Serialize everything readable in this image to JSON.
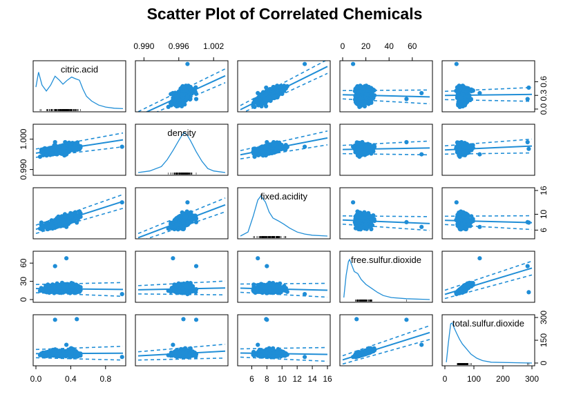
{
  "chart_data": {
    "type": "scatter",
    "title": "Scatter Plot of Correlated Chemicals",
    "point_color": "#1f8dd6",
    "line_color": "#1f8dd6",
    "variables": [
      {
        "name": "citric.acid",
        "range": [
          0,
          1
        ],
        "ticks": [
          "0.0",
          "0.4",
          "0.8"
        ],
        "tick_values": [
          0,
          0.4,
          0.8
        ],
        "density": [
          [
            0,
            0.55
          ],
          [
            0.03,
            0.92
          ],
          [
            0.07,
            0.6
          ],
          [
            0.12,
            0.45
          ],
          [
            0.17,
            0.6
          ],
          [
            0.22,
            0.82
          ],
          [
            0.27,
            0.72
          ],
          [
            0.31,
            0.62
          ],
          [
            0.36,
            0.72
          ],
          [
            0.41,
            0.8
          ],
          [
            0.45,
            0.76
          ],
          [
            0.5,
            0.72
          ],
          [
            0.54,
            0.5
          ],
          [
            0.58,
            0.32
          ],
          [
            0.64,
            0.2
          ],
          [
            0.72,
            0.1
          ],
          [
            0.8,
            0.05
          ],
          [
            0.9,
            0.02
          ],
          [
            1,
            0.01
          ]
        ]
      },
      {
        "name": "density",
        "range": [
          0.989,
          1.004
        ],
        "ticks": [
          "0.990",
          "0.996",
          "1.002"
        ],
        "tick_values": [
          0.99,
          0.996,
          1.002
        ],
        "left_ticks": [
          "0.990",
          "1.000"
        ],
        "left_tick_values": [
          0.99,
          1.0
        ],
        "density": [
          [
            0.989,
            0.0
          ],
          [
            0.991,
            0.04
          ],
          [
            0.993,
            0.15
          ],
          [
            0.994,
            0.32
          ],
          [
            0.995,
            0.55
          ],
          [
            0.996,
            0.8
          ],
          [
            0.9965,
            0.92
          ],
          [
            0.997,
            1.0
          ],
          [
            0.9975,
            0.92
          ],
          [
            0.998,
            0.8
          ],
          [
            0.999,
            0.52
          ],
          [
            1.0,
            0.28
          ],
          [
            1.001,
            0.1
          ],
          [
            1.002,
            0.04
          ],
          [
            1.004,
            0.0
          ]
        ]
      },
      {
        "name": "fixed.acidity",
        "range": [
          4.5,
          16
        ],
        "ticks": [
          "6",
          "8",
          "10",
          "12",
          "14",
          "16"
        ],
        "tick_values": [
          6,
          8,
          10,
          12,
          14,
          16
        ],
        "right_ticks": [
          "6",
          "10",
          "16"
        ],
        "right_tick_values": [
          6,
          10,
          16
        ],
        "density": [
          [
            4.5,
            0.0
          ],
          [
            5.5,
            0.1
          ],
          [
            6.2,
            0.5
          ],
          [
            6.8,
            0.9
          ],
          [
            7.2,
            1.0
          ],
          [
            7.8,
            0.85
          ],
          [
            8.3,
            0.6
          ],
          [
            8.8,
            0.45
          ],
          [
            9.5,
            0.38
          ],
          [
            10.2,
            0.3
          ],
          [
            11,
            0.2
          ],
          [
            12,
            0.1
          ],
          [
            13,
            0.05
          ],
          [
            14,
            0.02
          ],
          [
            16,
            0.0
          ]
        ]
      },
      {
        "name": "free.sulfur.dioxide",
        "range": [
          0,
          75
        ],
        "ticks": [
          "0",
          "20",
          "40",
          "60"
        ],
        "tick_values": [
          0,
          20,
          40,
          60
        ],
        "left_ticks": [
          "0",
          "30",
          "60"
        ],
        "left_tick_values": [
          0,
          30,
          60
        ],
        "density": [
          [
            1,
            0.05
          ],
          [
            3,
            0.6
          ],
          [
            5,
            0.95
          ],
          [
            6,
            1.0
          ],
          [
            8,
            0.85
          ],
          [
            10,
            0.7
          ],
          [
            13,
            0.65
          ],
          [
            16,
            0.5
          ],
          [
            20,
            0.38
          ],
          [
            25,
            0.28
          ],
          [
            30,
            0.18
          ],
          [
            35,
            0.1
          ],
          [
            42,
            0.05
          ],
          [
            55,
            0.02
          ],
          [
            75,
            0.0
          ]
        ]
      },
      {
        "name": "total.sulfur.dioxide",
        "range": [
          0,
          300
        ],
        "ticks": [
          "0",
          "100",
          "200",
          "300"
        ],
        "tick_values": [
          0,
          100,
          200,
          300
        ],
        "right_ticks": [
          "0",
          "150",
          "300"
        ],
        "right_tick_values": [
          0,
          150,
          300
        ],
        "density": [
          [
            5,
            0.02
          ],
          [
            12,
            0.5
          ],
          [
            20,
            0.98
          ],
          [
            25,
            1.0
          ],
          [
            32,
            0.88
          ],
          [
            40,
            0.75
          ],
          [
            50,
            0.6
          ],
          [
            60,
            0.48
          ],
          [
            75,
            0.35
          ],
          [
            90,
            0.22
          ],
          [
            110,
            0.12
          ],
          [
            130,
            0.06
          ],
          [
            160,
            0.02
          ],
          [
            300,
            0.0
          ]
        ]
      }
    ]
  }
}
